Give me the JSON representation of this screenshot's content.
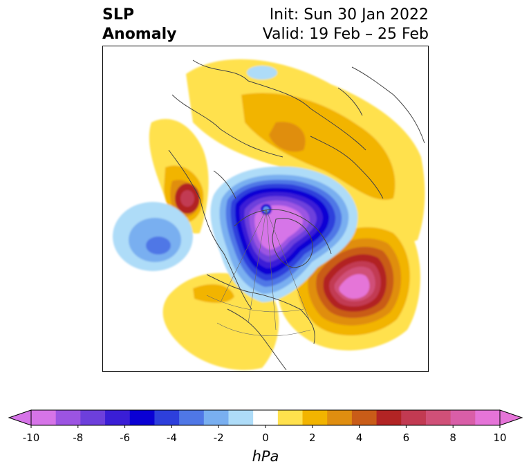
{
  "header": {
    "variable_line1": "SLP",
    "variable_line2": "Anomaly",
    "init_text": "Init: Sun 30 Jan 2022",
    "valid_text": "Valid: 19 Feb – 25 Feb"
  },
  "colorbar": {
    "units": "hPa",
    "tick_labels": [
      "-10",
      "-8",
      "-6",
      "-4",
      "-2",
      "0",
      "2",
      "4",
      "6",
      "8",
      "10"
    ],
    "levels": [
      -10,
      -9,
      -8,
      -7,
      -6,
      -5,
      -4,
      -3,
      -2,
      -1,
      1,
      2,
      3,
      4,
      5,
      6,
      7,
      8,
      9,
      10
    ],
    "colors": [
      "#d674e8",
      "#9c54e2",
      "#6d3fdc",
      "#3a1ed6",
      "#0a00d4",
      "#2d3fdc",
      "#4f77e6",
      "#79aff0",
      "#aedcf8",
      "#ffffff",
      "#ffe14d",
      "#f2b400",
      "#e08e10",
      "#c95c18",
      "#b22424",
      "#c23a52",
      "#d05078",
      "#d95ea8",
      "#e574d8"
    ],
    "extend": "both"
  },
  "map": {
    "projection": "north-polar-stereographic",
    "field": "sea-level pressure anomaly",
    "features": [
      "deep negative anomaly over Arctic / Greenland",
      "strong positive anomaly over North Atlantic",
      "positive anomaly over Eurasia",
      "positive anomaly over NE Pacific / Alaska coast",
      "negative anomaly over North Pacific",
      "weak negative anomaly near Mediterranean"
    ]
  }
}
